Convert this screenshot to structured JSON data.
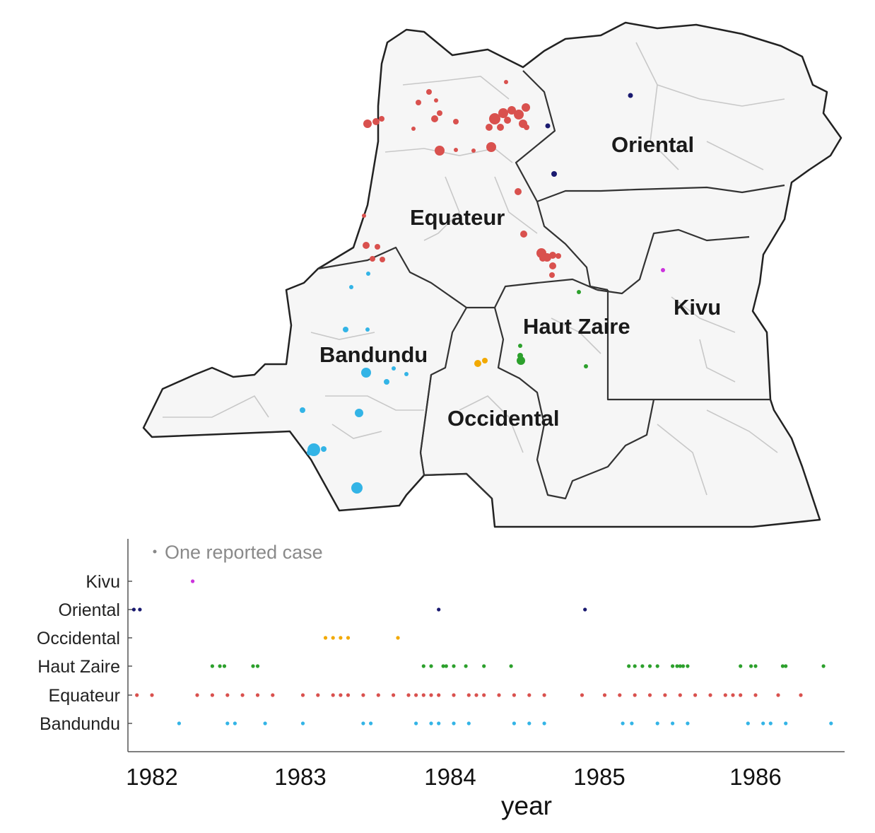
{
  "colors": {
    "kivu": "#cc33dd",
    "oriental": "#1a1a70",
    "occidental": "#f2a900",
    "haut_zaire": "#2ca02c",
    "equateur": "#d9514e",
    "bandundu": "#33b4e6",
    "land": "#f6f6f6",
    "border": "#222222",
    "inner_border": "#c8c8c8"
  },
  "map": {
    "regions": [
      {
        "key": "oriental",
        "label": "Oriental"
      },
      {
        "key": "equateur",
        "label": "Equateur"
      },
      {
        "key": "kivu",
        "label": "Kivu"
      },
      {
        "key": "haut_zaire",
        "label": "Haut Zaire"
      },
      {
        "key": "bandundu",
        "label": "Bandundu"
      },
      {
        "key": "occidental",
        "label": "Occidental"
      }
    ]
  },
  "timeline": {
    "legend": "One reported case",
    "rows": [
      "Kivu",
      "Oriental",
      "Occidental",
      "Haut Zaire",
      "Equateur",
      "Bandundu"
    ],
    "xlabel": "year",
    "ticks": [
      "1982",
      "1983",
      "1984",
      "1985",
      "1986"
    ]
  },
  "chart_data": {
    "type": "scatter",
    "xlabel": "year",
    "x_ticks": [
      1982,
      1983,
      1984,
      1985,
      1986
    ],
    "xlim": [
      1981.85,
      1986.6
    ],
    "categories": [
      "Kivu",
      "Oriental",
      "Occidental",
      "Haut Zaire",
      "Equateur",
      "Bandundu"
    ],
    "series": [
      {
        "name": "Kivu",
        "x": [
          1982.27
        ]
      },
      {
        "name": "Oriental",
        "x": [
          1981.88,
          1981.92,
          1983.9,
          1984.87
        ]
      },
      {
        "name": "Occidental",
        "x": [
          1983.15,
          1983.2,
          1983.25,
          1983.3,
          1983.63
        ]
      },
      {
        "name": "Haut Zaire",
        "x": [
          1982.4,
          1982.45,
          1982.48,
          1982.67,
          1982.7,
          1983.8,
          1983.85,
          1983.93,
          1983.95,
          1984.0,
          1984.08,
          1984.2,
          1984.38,
          1985.16,
          1985.2,
          1985.25,
          1985.3,
          1985.35,
          1985.45,
          1985.48,
          1985.5,
          1985.52,
          1985.55,
          1985.9,
          1985.97,
          1986.0,
          1986.18,
          1986.2,
          1986.45
        ]
      },
      {
        "name": "Equateur",
        "x": [
          1981.9,
          1982.0,
          1982.3,
          1982.4,
          1982.5,
          1982.6,
          1982.7,
          1982.8,
          1983.0,
          1983.1,
          1983.2,
          1983.25,
          1983.3,
          1983.4,
          1983.5,
          1983.6,
          1983.7,
          1983.75,
          1983.8,
          1983.85,
          1983.9,
          1984.0,
          1984.1,
          1984.15,
          1984.2,
          1984.3,
          1984.4,
          1984.5,
          1984.6,
          1984.85,
          1985.0,
          1985.1,
          1985.2,
          1985.3,
          1985.4,
          1985.5,
          1985.6,
          1985.7,
          1985.8,
          1985.85,
          1985.9,
          1986.0,
          1986.15,
          1986.3
        ]
      },
      {
        "name": "Bandundu",
        "x": [
          1982.18,
          1982.5,
          1982.55,
          1982.75,
          1983.0,
          1983.4,
          1983.45,
          1983.75,
          1983.85,
          1983.9,
          1984.0,
          1984.1,
          1984.4,
          1984.5,
          1984.6,
          1985.12,
          1985.18,
          1985.35,
          1985.45,
          1985.55,
          1985.95,
          1986.05,
          1986.1,
          1986.2,
          1986.5
        ]
      }
    ]
  }
}
